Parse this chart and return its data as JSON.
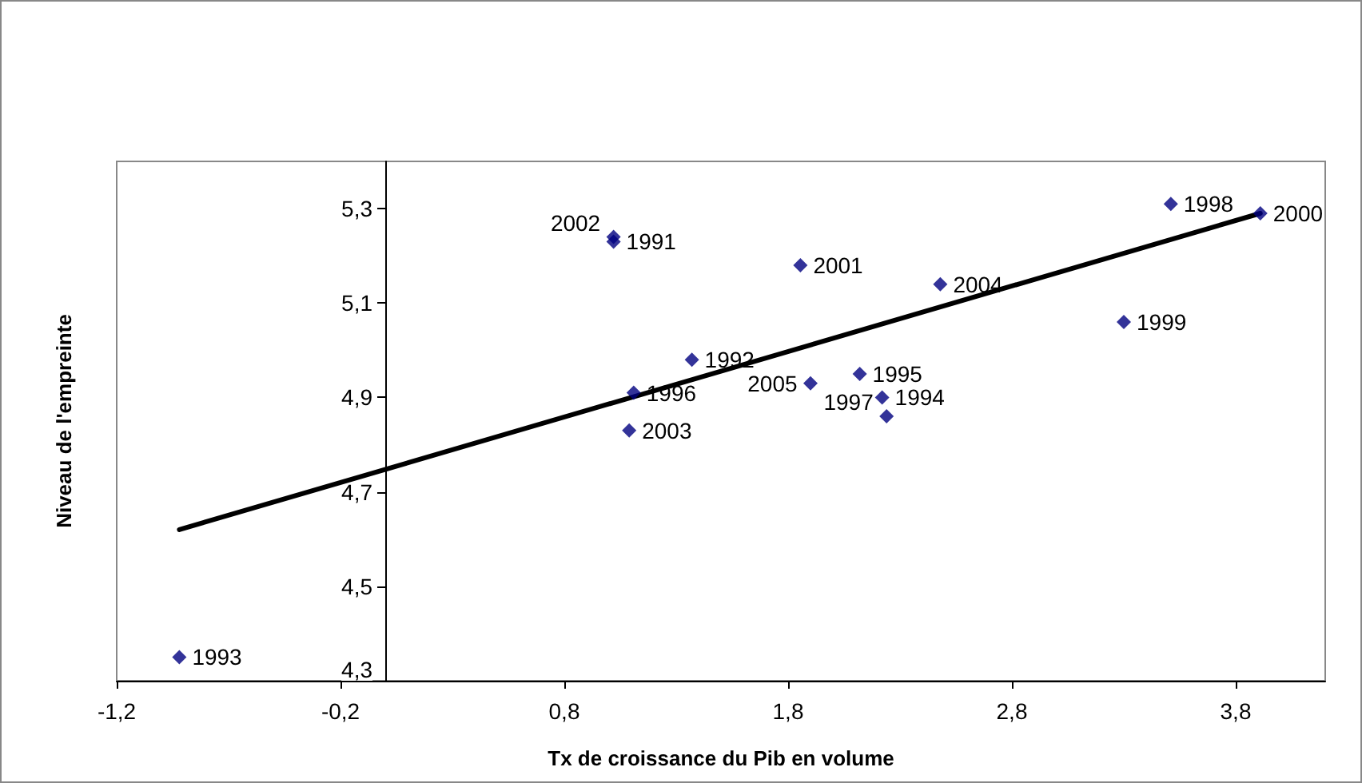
{
  "chart_data": {
    "type": "scatter",
    "xlabel": "Tx de croissance du Pib en volume",
    "ylabel": "Niveau de l'empreinte",
    "xlim": [
      -1.2,
      4.2
    ],
    "ylim": [
      4.3,
      5.4
    ],
    "xticks": [
      {
        "value": -1.2,
        "label": "-1,2"
      },
      {
        "value": -0.2,
        "label": "-0,2"
      },
      {
        "value": 0.8,
        "label": "0,8"
      },
      {
        "value": 1.8,
        "label": "1,8"
      },
      {
        "value": 2.8,
        "label": "2,8"
      },
      {
        "value": 3.8,
        "label": "3,8"
      }
    ],
    "yticks": [
      {
        "value": 4.3,
        "label": "4,3"
      },
      {
        "value": 4.5,
        "label": "4,5"
      },
      {
        "value": 4.7,
        "label": "4,7"
      },
      {
        "value": 4.9,
        "label": "4,9"
      },
      {
        "value": 5.1,
        "label": "5,1"
      },
      {
        "value": 5.3,
        "label": "5,3"
      }
    ],
    "grid": false,
    "marker": "diamond",
    "series": [
      {
        "color": "#000080",
        "x": [
          1.02,
          1.37,
          -0.92,
          2.22,
          2.12,
          1.11,
          2.24,
          3.51,
          3.3,
          3.91,
          1.855,
          1.02,
          1.09,
          2.48,
          1.9
        ],
        "values": [
          5.23,
          4.98,
          4.35,
          4.9,
          4.95,
          4.91,
          4.86,
          5.31,
          5.06,
          5.29,
          5.18,
          5.24,
          4.83,
          5.14,
          4.93
        ]
      },
      {
        "type": "line",
        "color": "#000000",
        "marker": "none",
        "line_style": "solid",
        "x": [
          -0.92,
          3.91
        ],
        "values": [
          4.62,
          5.29
        ]
      }
    ],
    "annotations": [
      {
        "text": "1991",
        "x": 1.02,
        "y": 5.23
      },
      {
        "text": "1992",
        "x": 1.37,
        "y": 4.98
      },
      {
        "text": "1993",
        "x": -0.92,
        "y": 4.35
      },
      {
        "text": "1994",
        "x": 2.22,
        "y": 4.9
      },
      {
        "text": "1995",
        "x": 2.12,
        "y": 4.95
      },
      {
        "text": "1996",
        "x": 1.11,
        "y": 4.91
      },
      {
        "text": "1997",
        "x": 2.24,
        "y": 4.86
      },
      {
        "text": "1998",
        "x": 3.51,
        "y": 5.31
      },
      {
        "text": "1999",
        "x": 3.3,
        "y": 5.06
      },
      {
        "text": "2000",
        "x": 3.91,
        "y": 5.29
      },
      {
        "text": "2001",
        "x": 1.855,
        "y": 5.18
      },
      {
        "text": "2002",
        "x": 1.02,
        "y": 5.24
      },
      {
        "text": "2003",
        "x": 1.09,
        "y": 4.83
      },
      {
        "text": "2004",
        "x": 2.48,
        "y": 5.14
      },
      {
        "text": "2005",
        "x": 1.9,
        "y": 4.93
      }
    ]
  }
}
